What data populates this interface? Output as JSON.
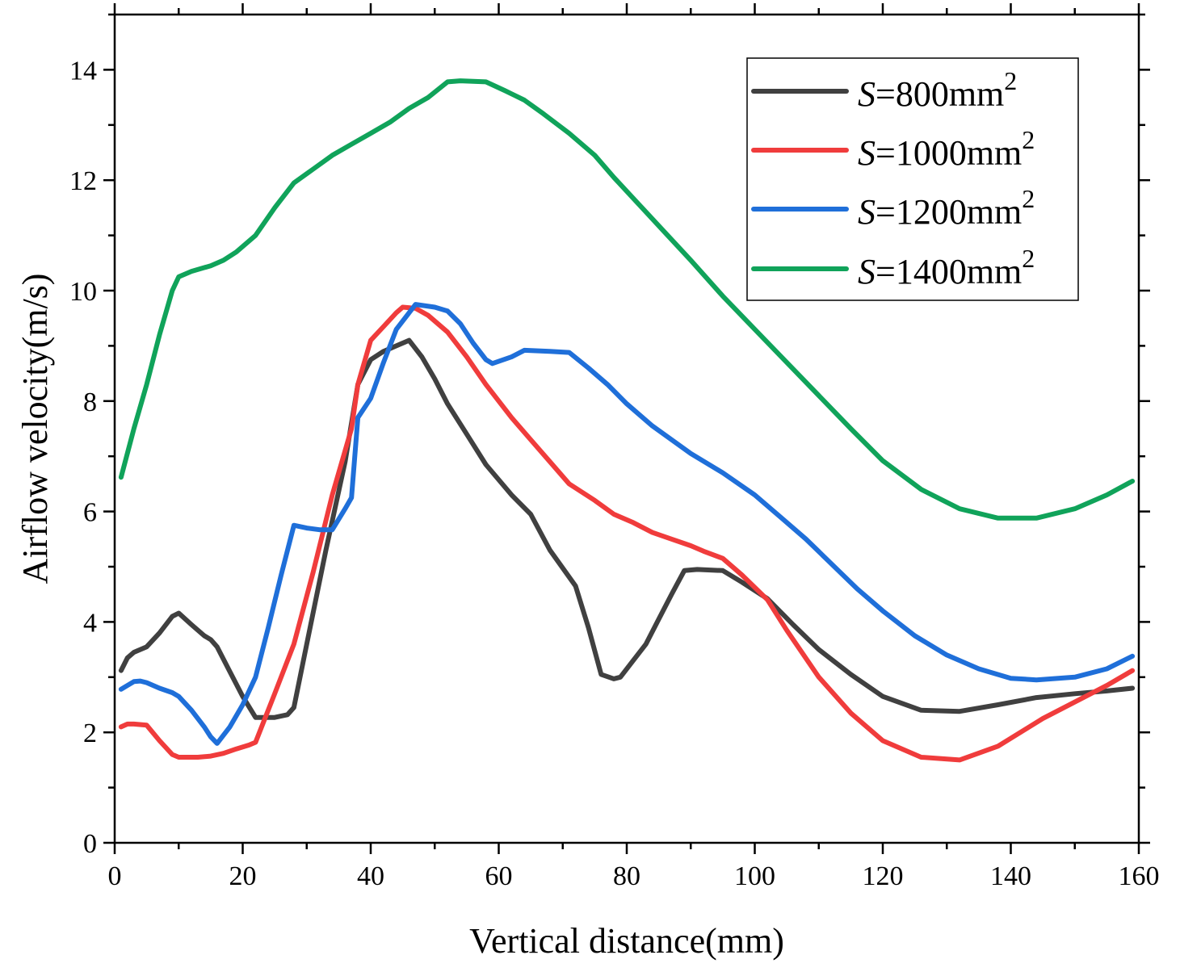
{
  "chart_data": {
    "type": "line",
    "title": "",
    "xlabel": "Vertical distance(mm)",
    "ylabel": "Airflow velocity(m/s)",
    "xlim": [
      0,
      160
    ],
    "ylim": [
      0,
      15
    ],
    "xticks": [
      0,
      20,
      40,
      60,
      80,
      100,
      120,
      140,
      160
    ],
    "yticks": [
      0,
      2,
      4,
      6,
      8,
      10,
      12,
      14
    ],
    "grid": false,
    "legend_position": "top-right",
    "series": [
      {
        "name": "S=800mm2",
        "legend_prefix": "S",
        "legend_body": "=800mm",
        "legend_sup": "2",
        "color": "#404040",
        "points": [
          [
            1,
            3.12
          ],
          [
            2,
            3.35
          ],
          [
            3,
            3.45
          ],
          [
            5,
            3.55
          ],
          [
            7,
            3.8
          ],
          [
            9,
            4.1
          ],
          [
            10,
            4.16
          ],
          [
            12,
            3.95
          ],
          [
            14,
            3.75
          ],
          [
            15,
            3.68
          ],
          [
            16,
            3.55
          ],
          [
            18,
            3.1
          ],
          [
            20,
            2.65
          ],
          [
            22,
            2.27
          ],
          [
            25,
            2.27
          ],
          [
            27,
            2.32
          ],
          [
            28,
            2.45
          ],
          [
            30,
            3.6
          ],
          [
            33,
            5.3
          ],
          [
            36,
            6.9
          ],
          [
            38,
            8.3
          ],
          [
            40,
            8.75
          ],
          [
            42,
            8.9
          ],
          [
            44,
            9.0
          ],
          [
            46,
            9.1
          ],
          [
            48,
            8.8
          ],
          [
            50,
            8.4
          ],
          [
            52,
            7.95
          ],
          [
            55,
            7.4
          ],
          [
            58,
            6.85
          ],
          [
            62,
            6.3
          ],
          [
            65,
            5.95
          ],
          [
            68,
            5.3
          ],
          [
            72,
            4.65
          ],
          [
            74,
            3.9
          ],
          [
            76,
            3.05
          ],
          [
            78,
            2.97
          ],
          [
            79,
            3.0
          ],
          [
            81,
            3.3
          ],
          [
            83,
            3.6
          ],
          [
            85,
            4.05
          ],
          [
            87,
            4.5
          ],
          [
            89,
            4.93
          ],
          [
            91,
            4.95
          ],
          [
            95,
            4.93
          ],
          [
            98,
            4.72
          ],
          [
            102,
            4.42
          ],
          [
            106,
            3.95
          ],
          [
            110,
            3.5
          ],
          [
            115,
            3.05
          ],
          [
            120,
            2.65
          ],
          [
            126,
            2.4
          ],
          [
            132,
            2.38
          ],
          [
            138,
            2.5
          ],
          [
            144,
            2.63
          ],
          [
            150,
            2.7
          ],
          [
            155,
            2.75
          ],
          [
            159,
            2.8
          ]
        ]
      },
      {
        "name": "S=1000mm2",
        "legend_prefix": "S",
        "legend_body": "=1000mm",
        "legend_sup": "2",
        "color": "#f03c3c",
        "points": [
          [
            1,
            2.1
          ],
          [
            2,
            2.15
          ],
          [
            3,
            2.15
          ],
          [
            5,
            2.13
          ],
          [
            7,
            1.85
          ],
          [
            9,
            1.6
          ],
          [
            10,
            1.55
          ],
          [
            13,
            1.55
          ],
          [
            15,
            1.57
          ],
          [
            17,
            1.62
          ],
          [
            19,
            1.7
          ],
          [
            21,
            1.77
          ],
          [
            22,
            1.82
          ],
          [
            25,
            2.7
          ],
          [
            28,
            3.6
          ],
          [
            31,
            4.9
          ],
          [
            34,
            6.3
          ],
          [
            37,
            7.5
          ],
          [
            38,
            8.3
          ],
          [
            40,
            9.1
          ],
          [
            42,
            9.35
          ],
          [
            44,
            9.6
          ],
          [
            45,
            9.7
          ],
          [
            47,
            9.68
          ],
          [
            49,
            9.55
          ],
          [
            52,
            9.25
          ],
          [
            55,
            8.8
          ],
          [
            58,
            8.3
          ],
          [
            62,
            7.7
          ],
          [
            65,
            7.3
          ],
          [
            68,
            6.9
          ],
          [
            71,
            6.5
          ],
          [
            75,
            6.2
          ],
          [
            78,
            5.95
          ],
          [
            81,
            5.8
          ],
          [
            84,
            5.62
          ],
          [
            87,
            5.5
          ],
          [
            90,
            5.38
          ],
          [
            92,
            5.28
          ],
          [
            95,
            5.15
          ],
          [
            98,
            4.85
          ],
          [
            102,
            4.4
          ],
          [
            105,
            3.85
          ],
          [
            110,
            3.0
          ],
          [
            115,
            2.35
          ],
          [
            120,
            1.85
          ],
          [
            126,
            1.55
          ],
          [
            132,
            1.5
          ],
          [
            138,
            1.75
          ],
          [
            145,
            2.25
          ],
          [
            150,
            2.55
          ],
          [
            155,
            2.85
          ],
          [
            159,
            3.12
          ]
        ]
      },
      {
        "name": "S=1200mm2",
        "legend_prefix": "S",
        "legend_body": "=1200mm",
        "legend_sup": "2",
        "color": "#1f6fd9",
        "points": [
          [
            1,
            2.78
          ],
          [
            2,
            2.85
          ],
          [
            3,
            2.92
          ],
          [
            4,
            2.93
          ],
          [
            5,
            2.9
          ],
          [
            7,
            2.8
          ],
          [
            9,
            2.72
          ],
          [
            10,
            2.65
          ],
          [
            12,
            2.4
          ],
          [
            14,
            2.1
          ],
          [
            15,
            1.92
          ],
          [
            16,
            1.8
          ],
          [
            18,
            2.1
          ],
          [
            20,
            2.5
          ],
          [
            22,
            3.0
          ],
          [
            24,
            3.9
          ],
          [
            26,
            4.85
          ],
          [
            28,
            5.75
          ],
          [
            30,
            5.7
          ],
          [
            32,
            5.67
          ],
          [
            34,
            5.67
          ],
          [
            36,
            6.05
          ],
          [
            37,
            6.25
          ],
          [
            38,
            7.7
          ],
          [
            40,
            8.05
          ],
          [
            42,
            8.7
          ],
          [
            44,
            9.3
          ],
          [
            47,
            9.75
          ],
          [
            50,
            9.7
          ],
          [
            52,
            9.63
          ],
          [
            54,
            9.4
          ],
          [
            56,
            9.05
          ],
          [
            58,
            8.75
          ],
          [
            59,
            8.68
          ],
          [
            62,
            8.8
          ],
          [
            64,
            8.92
          ],
          [
            68,
            8.9
          ],
          [
            71,
            8.88
          ],
          [
            74,
            8.6
          ],
          [
            77,
            8.3
          ],
          [
            80,
            7.95
          ],
          [
            84,
            7.55
          ],
          [
            87,
            7.3
          ],
          [
            90,
            7.05
          ],
          [
            95,
            6.7
          ],
          [
            100,
            6.3
          ],
          [
            104,
            5.9
          ],
          [
            108,
            5.5
          ],
          [
            112,
            5.05
          ],
          [
            116,
            4.6
          ],
          [
            120,
            4.2
          ],
          [
            125,
            3.75
          ],
          [
            130,
            3.4
          ],
          [
            135,
            3.15
          ],
          [
            140,
            2.98
          ],
          [
            144,
            2.95
          ],
          [
            150,
            3.0
          ],
          [
            155,
            3.15
          ],
          [
            159,
            3.38
          ]
        ]
      },
      {
        "name": "S=1400mm2",
        "legend_prefix": "S",
        "legend_body": "=1400mm",
        "legend_sup": "2",
        "color": "#10a35a",
        "points": [
          [
            1,
            6.62
          ],
          [
            3,
            7.5
          ],
          [
            5,
            8.3
          ],
          [
            7,
            9.2
          ],
          [
            9,
            10.0
          ],
          [
            10,
            10.25
          ],
          [
            12,
            10.35
          ],
          [
            15,
            10.45
          ],
          [
            17,
            10.55
          ],
          [
            19,
            10.7
          ],
          [
            22,
            11.0
          ],
          [
            25,
            11.5
          ],
          [
            28,
            11.95
          ],
          [
            31,
            12.2
          ],
          [
            34,
            12.45
          ],
          [
            37,
            12.65
          ],
          [
            40,
            12.85
          ],
          [
            43,
            13.05
          ],
          [
            46,
            13.3
          ],
          [
            49,
            13.5
          ],
          [
            52,
            13.78
          ],
          [
            54,
            13.8
          ],
          [
            58,
            13.78
          ],
          [
            61,
            13.62
          ],
          [
            64,
            13.45
          ],
          [
            67,
            13.2
          ],
          [
            71,
            12.85
          ],
          [
            75,
            12.45
          ],
          [
            78,
            12.05
          ],
          [
            82,
            11.55
          ],
          [
            86,
            11.05
          ],
          [
            90,
            10.55
          ],
          [
            95,
            9.9
          ],
          [
            100,
            9.3
          ],
          [
            105,
            8.7
          ],
          [
            110,
            8.1
          ],
          [
            115,
            7.5
          ],
          [
            120,
            6.92
          ],
          [
            126,
            6.4
          ],
          [
            132,
            6.05
          ],
          [
            138,
            5.88
          ],
          [
            144,
            5.88
          ],
          [
            150,
            6.05
          ],
          [
            155,
            6.3
          ],
          [
            159,
            6.55
          ]
        ]
      }
    ]
  }
}
